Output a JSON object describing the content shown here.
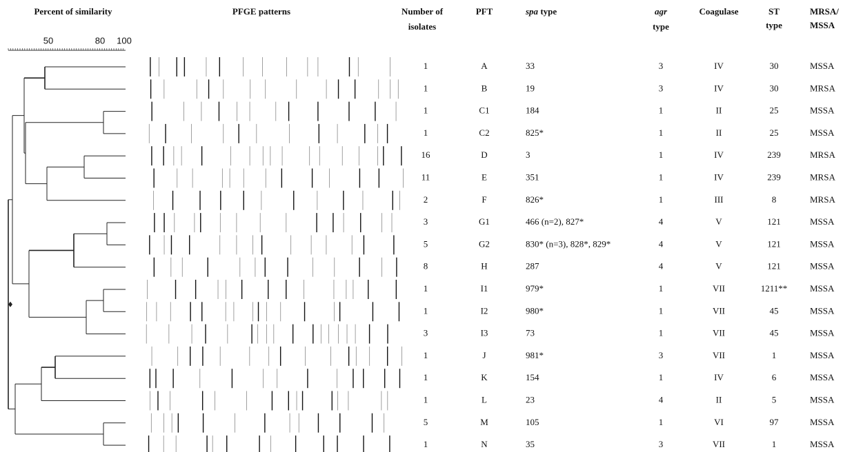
{
  "headers": {
    "similarity": "Percent of similarity",
    "pfge": "PFGE patterns",
    "isolates": [
      "Number of",
      "isolates"
    ],
    "pft": "PFT",
    "spa": [
      "spa",
      " type"
    ],
    "agr": [
      "agr",
      "type"
    ],
    "coagulase": "Coagulase",
    "st": [
      "ST",
      "type"
    ],
    "mrsa": [
      "MRSA/",
      "MSSA"
    ]
  },
  "scale": [
    50,
    80,
    100
  ],
  "rows": [
    [
      1,
      "A",
      "33",
      3,
      "IV",
      "30",
      "MSSA"
    ],
    [
      1,
      "B",
      "19",
      3,
      "IV",
      "30",
      "MRSA"
    ],
    [
      1,
      "C1",
      "184",
      1,
      "II",
      "25",
      "MSSA"
    ],
    [
      1,
      "C2",
      "825*",
      1,
      "II",
      "25",
      "MSSA"
    ],
    [
      16,
      "D",
      "3",
      1,
      "IV",
      "239",
      "MRSA"
    ],
    [
      11,
      "E",
      "351",
      1,
      "IV",
      "239",
      "MRSA"
    ],
    [
      2,
      "F",
      "826*",
      1,
      "III",
      "8",
      "MRSA"
    ],
    [
      3,
      "G1",
      "466 (n=2), 827*",
      4,
      "V",
      "121",
      "MSSA"
    ],
    [
      5,
      "G2",
      "830* (n=3), 828*, 829*",
      4,
      "V",
      "121",
      "MSSA"
    ],
    [
      8,
      "H",
      "287",
      4,
      "V",
      "121",
      "MSSA"
    ],
    [
      1,
      "I1",
      "979*",
      1,
      "VII",
      "1211**",
      "MSSA"
    ],
    [
      1,
      "I2",
      "980*",
      1,
      "VII",
      "45",
      "MSSA"
    ],
    [
      3,
      "I3",
      "73",
      1,
      "VII",
      "45",
      "MSSA"
    ],
    [
      1,
      "J",
      "981*",
      3,
      "VII",
      "1",
      "MSSA"
    ],
    [
      1,
      "K",
      "154",
      1,
      "IV",
      "6",
      "MSSA"
    ],
    [
      1,
      "L",
      "23",
      4,
      "II",
      "5",
      "MSSA"
    ],
    [
      5,
      "M",
      "105",
      1,
      "VI",
      "97",
      "MSSA"
    ],
    [
      1,
      "N",
      "35",
      3,
      "VII",
      "1",
      "MSSA"
    ]
  ]
}
